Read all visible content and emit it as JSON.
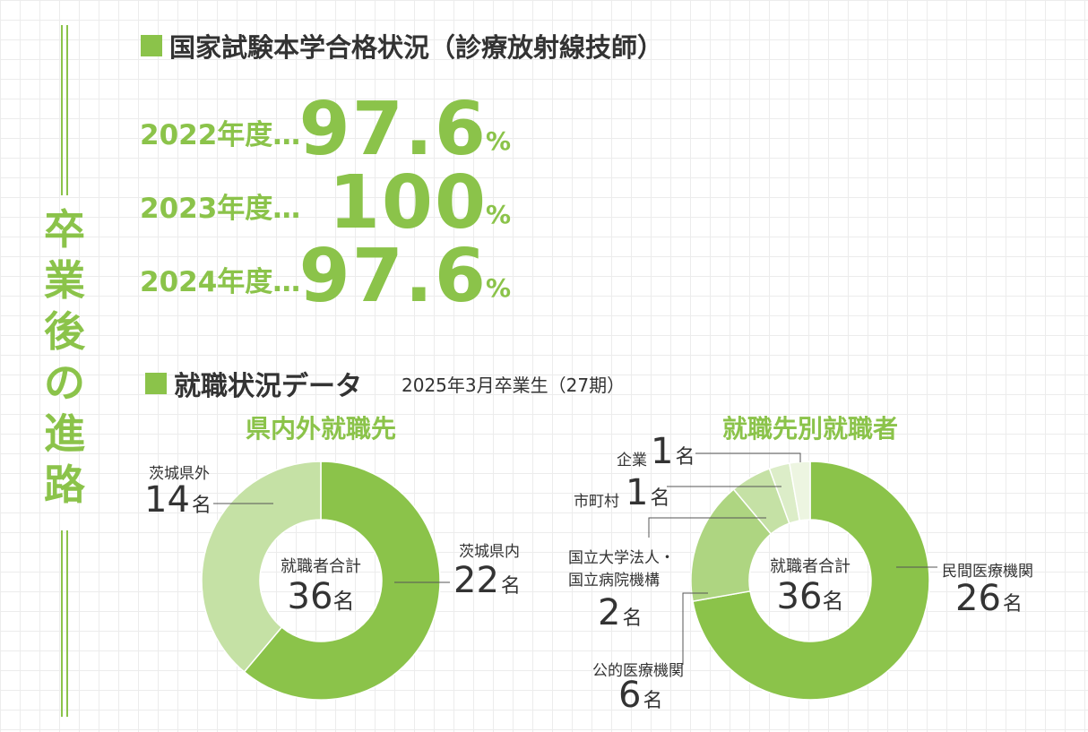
{
  "side_title": [
    "卒",
    "業",
    "後",
    "の",
    "進",
    "路"
  ],
  "exam": {
    "title": "国家試験本学合格状況（診療放射線技師）",
    "rows": [
      {
        "year": "2022年度…",
        "rate": "97.6",
        "unit": "%"
      },
      {
        "year": "2023年度…",
        "rate": "100",
        "unit": "%"
      },
      {
        "year": "2024年度…",
        "rate": "97.6",
        "unit": "%"
      }
    ]
  },
  "employment": {
    "title": "就職状況データ",
    "subtitle": "2025年3月卒業生（27期）"
  },
  "colors": {
    "accent": "#8bc34a"
  },
  "chart_data": [
    {
      "type": "pie",
      "title": "県内外就職先",
      "center_label": "就職者合計",
      "center_value": "36",
      "unit": "名",
      "slices": [
        {
          "label": "茨城県内",
          "value": 22,
          "color": "#8bc34a"
        },
        {
          "label": "茨城県外",
          "value": 14,
          "color": "#c5e1a5"
        }
      ]
    },
    {
      "type": "pie",
      "title": "就職先別就職者",
      "center_label": "就職者合計",
      "center_value": "36",
      "unit": "名",
      "slices": [
        {
          "label": "民間医療機関",
          "value": 26,
          "color": "#8bc34a"
        },
        {
          "label": "公的医療機関",
          "value": 6,
          "color": "#aed581"
        },
        {
          "label": "国立大学法人・\n国立病院機構",
          "value": 2,
          "color": "#c5e1a5"
        },
        {
          "label": "市町村",
          "value": 1,
          "color": "#dcedc8"
        },
        {
          "label": "企業",
          "value": 1,
          "color": "#edf5e1"
        }
      ]
    }
  ]
}
